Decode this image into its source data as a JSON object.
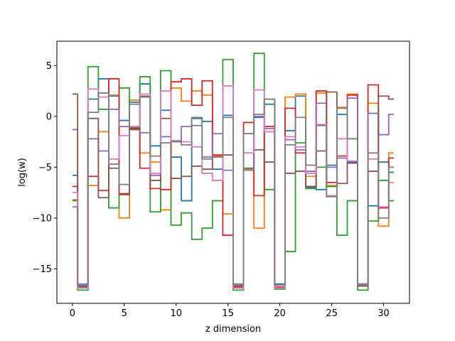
{
  "chart_data": {
    "type": "line",
    "drawstyle": "steps-mid",
    "xlabel": "z dimension",
    "ylabel": "log(w)",
    "xlim": [
      -1.5,
      32.5
    ],
    "ylim": [
      -18.4,
      7.4
    ],
    "xticks": [
      0,
      5,
      10,
      15,
      20,
      25,
      30
    ],
    "yticks": [
      -15,
      -10,
      -5,
      0,
      5
    ],
    "ytick_labels": [
      "−15",
      "−10",
      "−5",
      "0",
      "5"
    ],
    "grid": false,
    "x": [
      0,
      1,
      2,
      3,
      4,
      5,
      6,
      7,
      8,
      9,
      10,
      11,
      12,
      13,
      14,
      15,
      16,
      17,
      18,
      19,
      20,
      21,
      22,
      23,
      24,
      25,
      26,
      27,
      28,
      29,
      30,
      31
    ],
    "series": [
      {
        "color": "#1f77b4",
        "values": [
          -5.8,
          -16.7,
          1.7,
          3.7,
          2.0,
          -0.4,
          1.4,
          3.2,
          -2.9,
          0.6,
          -4.0,
          -8.3,
          -0.2,
          -0.5,
          -5.2,
          0.1,
          -16.6,
          -5.1,
          -0.1,
          1.2,
          -16.5,
          -1.4,
          2.0,
          -7.0,
          -7.2,
          -4.8,
          0.2,
          -4.5,
          -16.5,
          -8.8,
          -4.5,
          -5.5
        ]
      },
      {
        "color": "#ff7f0e",
        "values": [
          -8.2,
          -16.9,
          -6.8,
          -1.5,
          2.1,
          -10.0,
          1.6,
          -3.6,
          -4.5,
          -9.2,
          2.8,
          1.5,
          2.5,
          2.1,
          -3.9,
          -9.6,
          -16.5,
          -5.2,
          -11.0,
          1.7,
          -16.8,
          1.9,
          2.2,
          -5.9,
          2.3,
          -6.8,
          0.9,
          2.2,
          -16.6,
          1.3,
          -10.8,
          -3.6
        ]
      },
      {
        "color": "#2ca02c",
        "values": [
          -8.3,
          -17.1,
          4.9,
          0.7,
          -9.0,
          2.8,
          -1.1,
          3.9,
          -9.4,
          4.5,
          -10.7,
          -9.5,
          -12.1,
          -11.0,
          -8.3,
          5.6,
          -17.1,
          -5.1,
          6.2,
          -7.2,
          -17.0,
          -13.3,
          -2.6,
          -7.1,
          -5.0,
          -6.9,
          -11.7,
          -8.3,
          -17.1,
          -10.3,
          -6.3,
          -8.3
        ]
      },
      {
        "color": "#d62728",
        "values": [
          -6.9,
          -16.8,
          -5.9,
          -7.3,
          3.7,
          -7.6,
          -1.2,
          -5.1,
          -7.1,
          -7.2,
          3.4,
          3.7,
          1.1,
          3.5,
          -3.8,
          -11.7,
          -16.8,
          -0.6,
          -7.8,
          -1.0,
          -16.8,
          0.8,
          -3.6,
          -6.9,
          2.5,
          -6.5,
          -3.9,
          2.1,
          -16.6,
          3.1,
          -9.0,
          -4.1
        ]
      },
      {
        "color": "#9467bd",
        "values": [
          -1.3,
          -16.5,
          -2.2,
          -3.4,
          0.7,
          -1.0,
          -1.0,
          -1.6,
          -5.8,
          -2.0,
          -2.4,
          -1.0,
          -0.9,
          -4.0,
          -1.7,
          -5.3,
          -16.5,
          -5.3,
          0.0,
          -1.2,
          -16.6,
          -2.3,
          -3.3,
          -5.4,
          1.3,
          -5.0,
          -4.1,
          1.8,
          -16.5,
          0.3,
          -1.8,
          0.2
        ]
      },
      {
        "color": "#8c564b",
        "values": [
          2.2,
          -16.8,
          -0.2,
          -8.0,
          -5.1,
          -7.7,
          -1.3,
          2.0,
          -6.3,
          -0.2,
          -6.1,
          -5.9,
          -4.9,
          -5.2,
          -4.0,
          -3.8,
          -16.7,
          -1.7,
          -3.3,
          -4.5,
          -16.6,
          -5.6,
          -5.4,
          -6.9,
          -3.4,
          2.4,
          -6.6,
          -4.6,
          -16.7,
          -5.4,
          2.0,
          1.7
        ]
      },
      {
        "color": "#e377c2",
        "values": [
          -7.5,
          -16.9,
          2.7,
          1.9,
          -4.2,
          -1.9,
          -1.0,
          2.2,
          -5.6,
          2.5,
          -2.5,
          -2.5,
          -3.0,
          -5.6,
          -6.3,
          3.0,
          -16.9,
          -3.6,
          2.6,
          -1.5,
          -16.9,
          -2.0,
          -3.0,
          -5.6,
          -0.8,
          -7.8,
          -2.2,
          -4.4,
          -16.6,
          -4.2,
          -8.9,
          -6.5
        ]
      },
      {
        "color": "#7f7f7f",
        "values": [
          -8.9,
          -16.6,
          0.4,
          2.3,
          -4.7,
          -6.7,
          1.2,
          1.9,
          -3.9,
          -2.6,
          -2.5,
          -2.8,
          -0.1,
          -4.2,
          -4.0,
          -0.1,
          -16.6,
          -1.7,
          0.2,
          1.7,
          -16.6,
          -2.8,
          -0.1,
          -4.8,
          -0.9,
          -7.9,
          0.8,
          -2.2,
          -16.6,
          -3.6,
          -10.0,
          -5.0
        ]
      }
    ]
  }
}
